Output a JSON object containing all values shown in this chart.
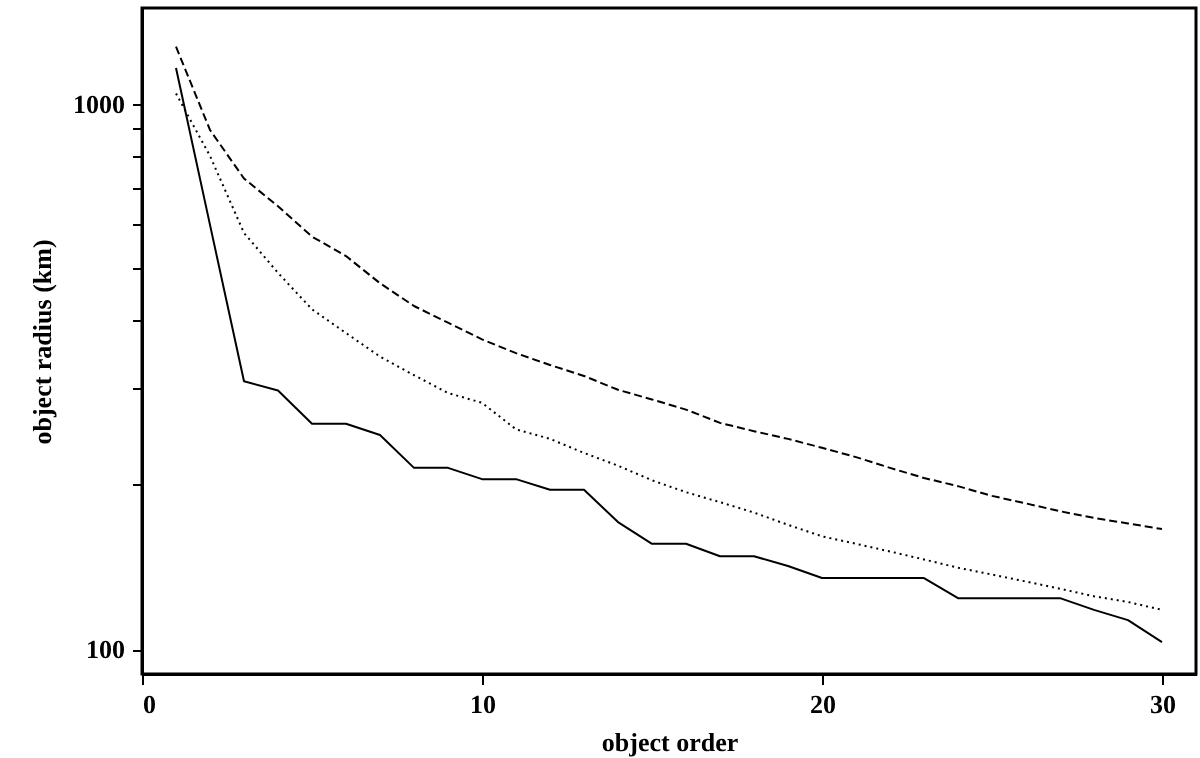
{
  "chart_data": {
    "type": "line",
    "xlabel": "object order",
    "ylabel": "object radius (km)",
    "log": "y",
    "grid": false,
    "xlim": [
      0,
      31
    ],
    "xticks": [
      0,
      10,
      20,
      30
    ],
    "ylim": [
      90,
      1500
    ],
    "yticks": [
      100,
      {
        "value": 200,
        "label": null
      },
      {
        "value": 300,
        "label": null
      },
      {
        "value": 400,
        "label": null
      },
      {
        "value": 500,
        "label": null
      },
      {
        "value": 600,
        "label": null
      },
      {
        "value": 700,
        "label": null
      },
      {
        "value": 800,
        "label": null
      },
      {
        "value": 900,
        "label": null
      },
      1000
    ],
    "x": [
      1,
      2,
      3,
      4,
      5,
      6,
      7,
      8,
      9,
      10,
      11,
      12,
      13,
      14,
      15,
      16,
      17,
      18,
      19,
      20,
      21,
      22,
      23,
      24,
      25,
      26,
      27,
      28,
      29,
      30
    ],
    "series": [
      {
        "color": "#000000",
        "line_style": "solid",
        "values": [
          1164,
          600,
          310,
          298,
          259,
          259,
          247,
          215,
          215,
          205,
          205,
          196,
          196,
          171,
          156,
          156,
          148,
          148,
          142,
          135,
          135,
          135,
          135,
          124,
          124,
          124,
          124,
          118,
          113,
          103
        ]
      },
      {
        "color": "#000000",
        "line_style": "dotted",
        "values": [
          1045,
          803,
          580,
          490,
          420,
          380,
          344,
          318,
          295,
          283,
          253,
          243,
          229,
          217,
          204,
          194,
          186,
          178,
          169,
          161,
          156,
          151,
          146,
          141,
          137,
          133,
          129,
          125,
          122,
          118
        ]
      },
      {
        "color": "#000000",
        "line_style": "dashed",
        "values": [
          1274,
          896,
          730,
          649,
          571,
          526,
          469,
          426,
          397,
          370,
          349,
          332,
          317,
          299,
          287,
          275,
          260,
          251,
          243,
          234,
          225,
          215,
          206,
          199,
          191,
          185,
          179,
          174,
          170,
          166
        ]
      }
    ]
  }
}
